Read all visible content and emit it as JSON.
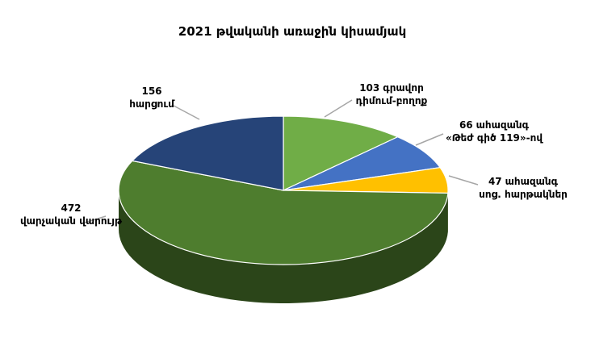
{
  "chart_data": {
    "type": "pie3d",
    "title": "2021 թվականի առաջին կիսամյակ",
    "categories": [
      "գրավոր դիմում-բողոք",
      "ահազանգ «Թեժ գիծ 119»-ով",
      "ահազանգ սոց. հարթակներ",
      "վարչական վարույթ",
      "հարցում"
    ],
    "values": [
      103,
      66,
      47,
      472,
      156
    ],
    "colors": [
      "#70ad47",
      "#4472c4",
      "#ffc000",
      "#4e7d2e",
      "#264478"
    ]
  }
}
